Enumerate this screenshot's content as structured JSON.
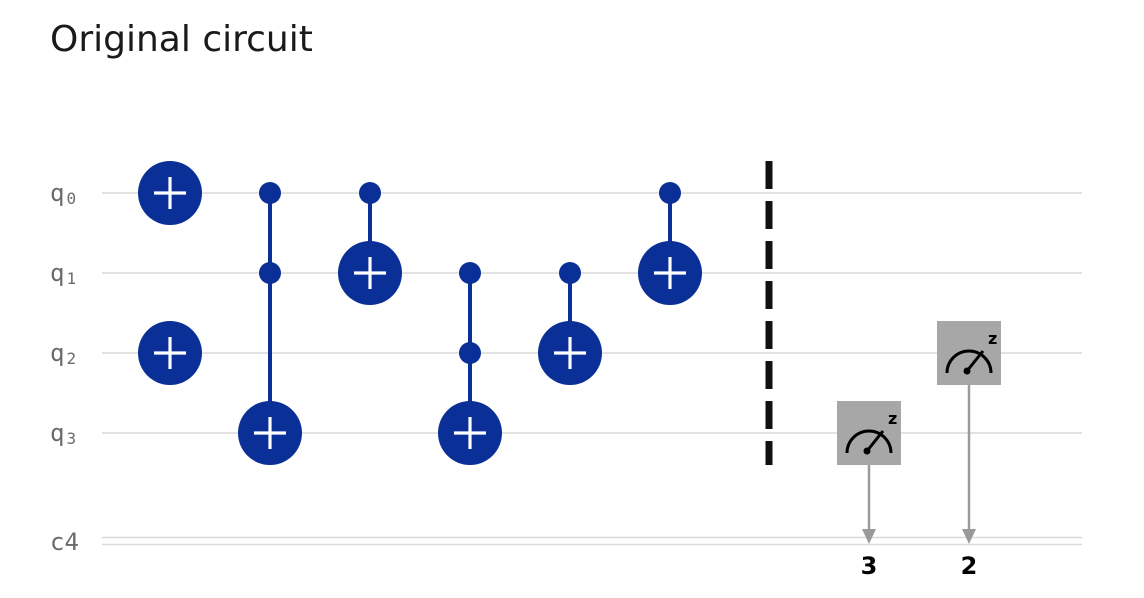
{
  "title": "Original circuit",
  "colors": {
    "gate": "#0a2f96",
    "gate_symbol": "#ffffff",
    "wire": "#d9d9d9",
    "label": "#6b6b6b",
    "barrier": "#111111",
    "measure_box": "#a7a7a7",
    "measure_line": "#9a9a9a"
  },
  "qubits": [
    {
      "name": "q",
      "index": "0"
    },
    {
      "name": "q",
      "index": "1"
    },
    {
      "name": "q",
      "index": "2"
    },
    {
      "name": "q",
      "index": "3"
    }
  ],
  "classical_register": {
    "label": "c4"
  },
  "operations": [
    {
      "type": "x",
      "target": 0,
      "column": 0
    },
    {
      "type": "x",
      "target": 2,
      "column": 0
    },
    {
      "type": "ccx",
      "controls": [
        0,
        1
      ],
      "target": 3,
      "column": 1
    },
    {
      "type": "cx",
      "controls": [
        0
      ],
      "target": 1,
      "column": 2
    },
    {
      "type": "ccx",
      "controls": [
        1,
        2
      ],
      "target": 3,
      "column": 3
    },
    {
      "type": "cx",
      "controls": [
        1
      ],
      "target": 2,
      "column": 4
    },
    {
      "type": "cx",
      "controls": [
        0
      ],
      "target": 1,
      "column": 5
    }
  ],
  "barrier": {
    "qubits": [
      0,
      1,
      2,
      3
    ]
  },
  "measurements": [
    {
      "qubit": 3,
      "bit": "3",
      "basis": "z"
    },
    {
      "qubit": 2,
      "bit": "2",
      "basis": "z"
    }
  ]
}
